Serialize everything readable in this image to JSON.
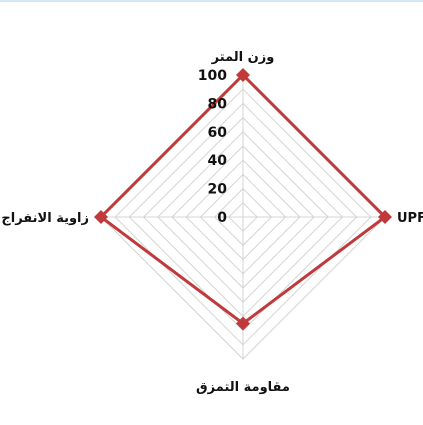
{
  "chart_data": {
    "type": "radar",
    "axes": [
      "وزن المتر",
      "UPF",
      "مقاومة التمزق",
      "زاوية الانفراج"
    ],
    "ticks": [
      "0",
      "20",
      "40",
      "60",
      "80",
      "100"
    ],
    "range": [
      0,
      100
    ],
    "grid_levels": [
      10,
      20,
      30,
      40,
      50,
      60,
      70,
      80,
      90,
      100
    ],
    "series": [
      {
        "values": [
          100,
          100,
          75,
          100
        ],
        "color": "#c0393b"
      }
    ],
    "grid_color": "#d4d4d4",
    "grid": true
  }
}
